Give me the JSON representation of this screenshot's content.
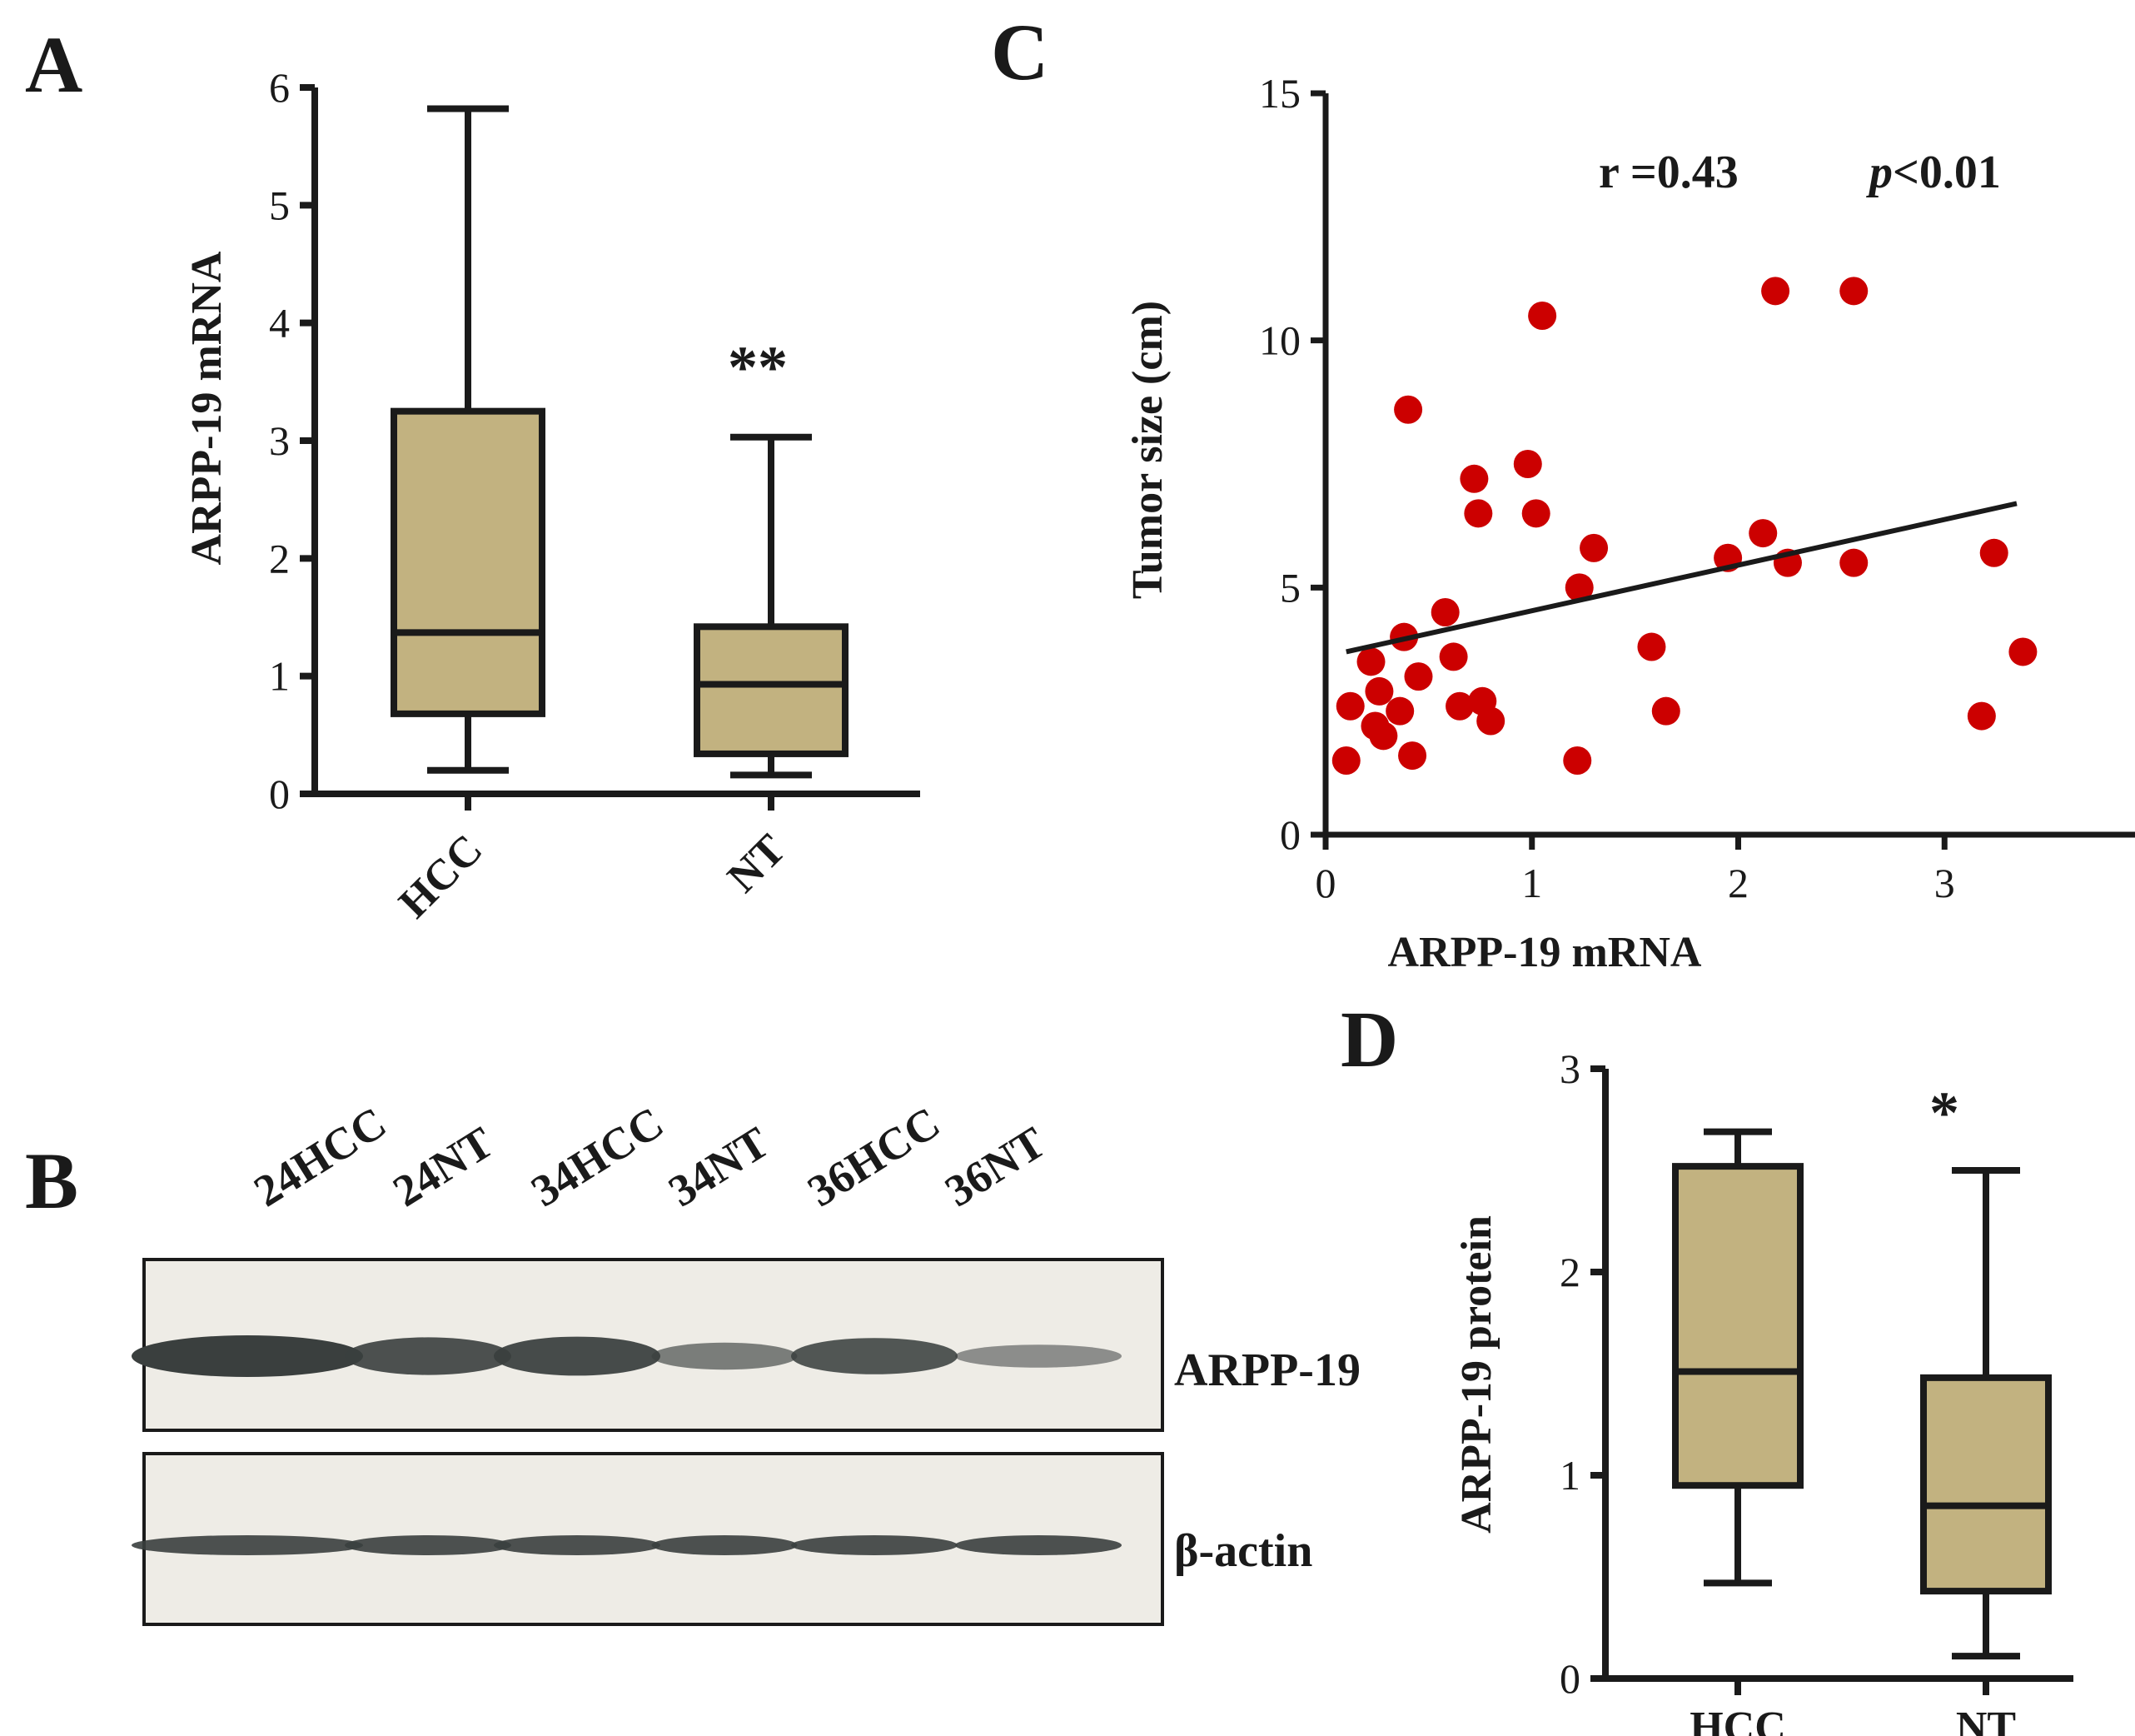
{
  "colors": {
    "box_fill": "#c2b280",
    "dot_fill": "#cc0000",
    "ink": "#1a1a1a",
    "blot_bg": "#eeece6",
    "band": "#3a3f3e"
  },
  "panels": {
    "A": {
      "letter": "A",
      "significance": "**"
    },
    "B": {
      "letter": "B",
      "lanes": [
        "24HCC",
        "24NT",
        "34HCC",
        "34NT",
        "36HCC",
        "36NT"
      ],
      "blots": [
        {
          "label": "ARPP-19",
          "intensity": [
            1.0,
            0.85,
            0.9,
            0.45,
            0.8,
            0.3
          ]
        },
        {
          "label": "β-actin",
          "intensity": [
            0.85,
            0.85,
            0.85,
            0.85,
            0.85,
            0.85
          ]
        }
      ]
    },
    "C": {
      "letter": "C",
      "r_text": "r =0.43",
      "p_italic": "p",
      "p_text": "<0.01"
    },
    "D": {
      "letter": "D",
      "significance": "*"
    }
  },
  "chart_data": [
    {
      "id": "A",
      "type": "box",
      "title": "",
      "xlabel": "",
      "ylabel": "ARPP-19 mRNA",
      "ylim": [
        0,
        6
      ],
      "yticks": [
        0,
        1,
        2,
        3,
        4,
        5,
        6
      ],
      "categories": [
        "HCC",
        "NT"
      ],
      "boxes": [
        {
          "name": "HCC",
          "min": 0.2,
          "q1": 0.68,
          "median": 1.37,
          "q3": 3.25,
          "max": 5.82
        },
        {
          "name": "NT",
          "min": 0.16,
          "q1": 0.34,
          "median": 0.93,
          "q3": 1.42,
          "max": 3.03
        }
      ]
    },
    {
      "id": "C",
      "type": "scatter",
      "title": "",
      "xlabel": "ARPP-19 mRNA",
      "ylabel": "Tumor size (cm)",
      "xlim": [
        0,
        4
      ],
      "ylim": [
        0,
        15
      ],
      "xticks": [
        0,
        1,
        2,
        3,
        4
      ],
      "yticks": [
        0,
        5,
        10,
        15
      ],
      "points": [
        [
          0.1,
          1.5
        ],
        [
          0.12,
          2.6
        ],
        [
          0.22,
          3.5
        ],
        [
          0.24,
          2.2
        ],
        [
          0.26,
          2.9
        ],
        [
          0.28,
          2.0
        ],
        [
          0.36,
          2.5
        ],
        [
          0.38,
          4.0
        ],
        [
          0.4,
          8.6
        ],
        [
          0.42,
          1.6
        ],
        [
          0.45,
          3.2
        ],
        [
          0.58,
          4.5
        ],
        [
          0.62,
          3.6
        ],
        [
          0.65,
          2.6
        ],
        [
          0.72,
          7.2
        ],
        [
          0.74,
          6.5
        ],
        [
          0.76,
          2.7
        ],
        [
          0.8,
          2.3
        ],
        [
          0.98,
          7.5
        ],
        [
          1.02,
          6.5
        ],
        [
          1.05,
          10.5
        ],
        [
          1.22,
          1.5
        ],
        [
          1.23,
          5.0
        ],
        [
          1.3,
          5.8
        ],
        [
          1.58,
          3.8
        ],
        [
          1.65,
          2.5
        ],
        [
          1.95,
          5.6
        ],
        [
          2.12,
          6.1
        ],
        [
          2.18,
          11.0
        ],
        [
          2.24,
          5.5
        ],
        [
          2.56,
          11.0
        ],
        [
          2.56,
          5.5
        ],
        [
          3.18,
          2.4
        ],
        [
          3.24,
          5.7
        ],
        [
          3.38,
          3.7
        ]
      ],
      "fit_line": {
        "x": [
          0.1,
          3.35
        ],
        "y": [
          3.7,
          6.7
        ]
      }
    },
    {
      "id": "D",
      "type": "box",
      "title": "",
      "xlabel": "",
      "ylabel": "ARPP-19 protein",
      "ylim": [
        0,
        3
      ],
      "yticks": [
        0,
        1,
        2,
        3
      ],
      "categories": [
        "HCC",
        "NT"
      ],
      "boxes": [
        {
          "name": "HCC",
          "min": 0.47,
          "q1": 0.95,
          "median": 1.51,
          "q3": 2.52,
          "max": 2.69
        },
        {
          "name": "NT",
          "min": 0.11,
          "q1": 0.43,
          "median": 0.85,
          "q3": 1.48,
          "max": 2.5
        }
      ]
    }
  ]
}
